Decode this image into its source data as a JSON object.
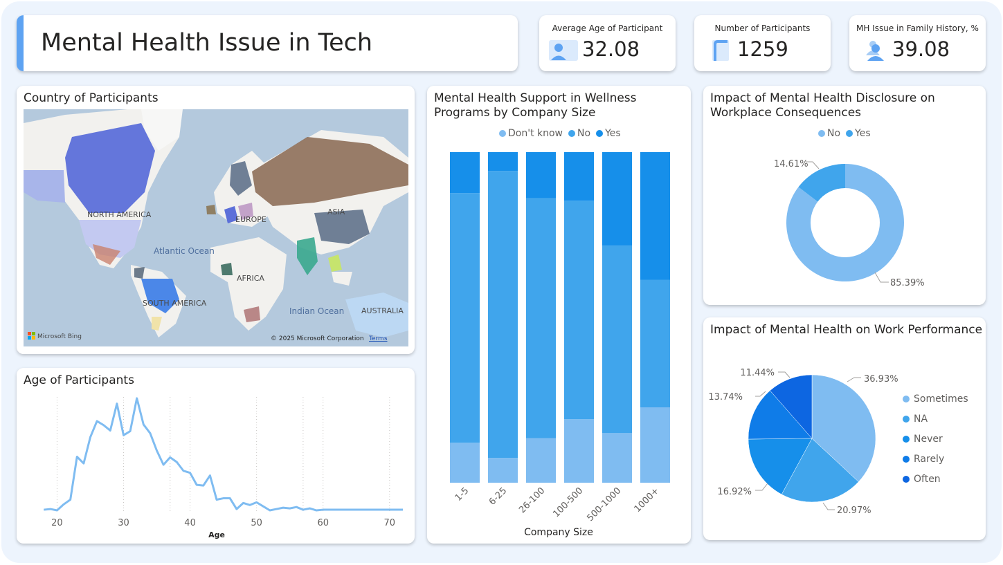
{
  "header": {
    "title": "Mental Health Issue in Tech"
  },
  "kpis": [
    {
      "label": "Average Age of Participant",
      "value": "32.08",
      "icon": "person-card-icon"
    },
    {
      "label": "Number of Participants",
      "value": "1259",
      "icon": "document-icon"
    },
    {
      "label": "MH Issue in Family History, %",
      "value": "39.08",
      "icon": "people-icon"
    }
  ],
  "map": {
    "title": "Country of Participants",
    "labels": {
      "north_america": "NORTH AMERICA",
      "europe": "EUROPE",
      "asia": "ASIA",
      "atlantic": "Atlantic Ocean",
      "africa": "AFRICA",
      "south_america": "SOUTH AMERICA",
      "indian": "Indian Ocean",
      "australia": "AUSTRALIA"
    },
    "attribution": "© 2025 Microsoft Corporation",
    "terms": "Terms",
    "provider": "Microsoft Bing"
  },
  "colors": {
    "dont_know": "#7fbcf1",
    "no": "#40a5ec",
    "yes": "#168fea",
    "sometimes": "#7fbcf1",
    "na": "#40a5ec",
    "never": "#168fea",
    "rarely": "#0f7ce8",
    "often": "#0d66e1",
    "line": "#7fbcf1"
  },
  "chart_data": [
    {
      "type": "line",
      "title": "Age of Participants",
      "xlabel": "Age",
      "xlim": [
        16,
        72
      ],
      "xticks": [
        20,
        30,
        40,
        50,
        60,
        70
      ],
      "x": [
        18,
        19,
        20,
        21,
        22,
        23,
        24,
        25,
        26,
        27,
        28,
        29,
        30,
        31,
        32,
        33,
        34,
        35,
        36,
        37,
        38,
        39,
        40,
        41,
        42,
        43,
        44,
        45,
        46,
        47,
        48,
        49,
        50,
        51,
        52,
        53,
        54,
        55,
        56,
        57,
        58,
        59,
        60,
        61,
        62,
        65,
        72
      ],
      "y": [
        2,
        3,
        1,
        10,
        17,
        81,
        71,
        110,
        134,
        128,
        120,
        160,
        113,
        119,
        168,
        129,
        116,
        90,
        69,
        80,
        73,
        60,
        57,
        39,
        38,
        53,
        17,
        19,
        19,
        3,
        12,
        9,
        13,
        7,
        1,
        3,
        5,
        4,
        6,
        2,
        4,
        1,
        2,
        2,
        2,
        2,
        2
      ]
    },
    {
      "type": "bar",
      "stacked": "100%",
      "title": "Mental Health Support in Wellness Programs by Company Size",
      "xlabel": "Company Size",
      "categories": [
        "1-5",
        "6-25",
        "26-100",
        "100-500",
        "500-1000",
        "1000+"
      ],
      "series": [
        {
          "name": "Don't know",
          "values": [
            12.1,
            7.5,
            13.5,
            19.2,
            15,
            22.8
          ]
        },
        {
          "name": "No",
          "values": [
            75.5,
            86.8,
            72.6,
            66.1,
            56.7,
            38.6
          ]
        },
        {
          "name": "Yes",
          "values": [
            12.4,
            5.7,
            13.9,
            14.7,
            28.3,
            38.6
          ]
        }
      ],
      "ylim": [
        0,
        100
      ]
    },
    {
      "type": "pie",
      "donut": true,
      "title": "Impact of Mental Health Disclosure on Workplace Consequences",
      "categories": [
        "No",
        "Yes"
      ],
      "values": [
        85.39,
        14.61
      ],
      "labels": [
        "85.39%",
        "14.61%"
      ]
    },
    {
      "type": "pie",
      "title": "Impact of Mental Health on Work Performance",
      "categories": [
        "Sometimes",
        "NA",
        "Never",
        "Rarely",
        "Often"
      ],
      "values": [
        36.93,
        20.97,
        16.92,
        13.74,
        11.44
      ],
      "labels": [
        "36.93%",
        "20.97%",
        "16.92%",
        "13.74%",
        "11.44%"
      ]
    }
  ]
}
